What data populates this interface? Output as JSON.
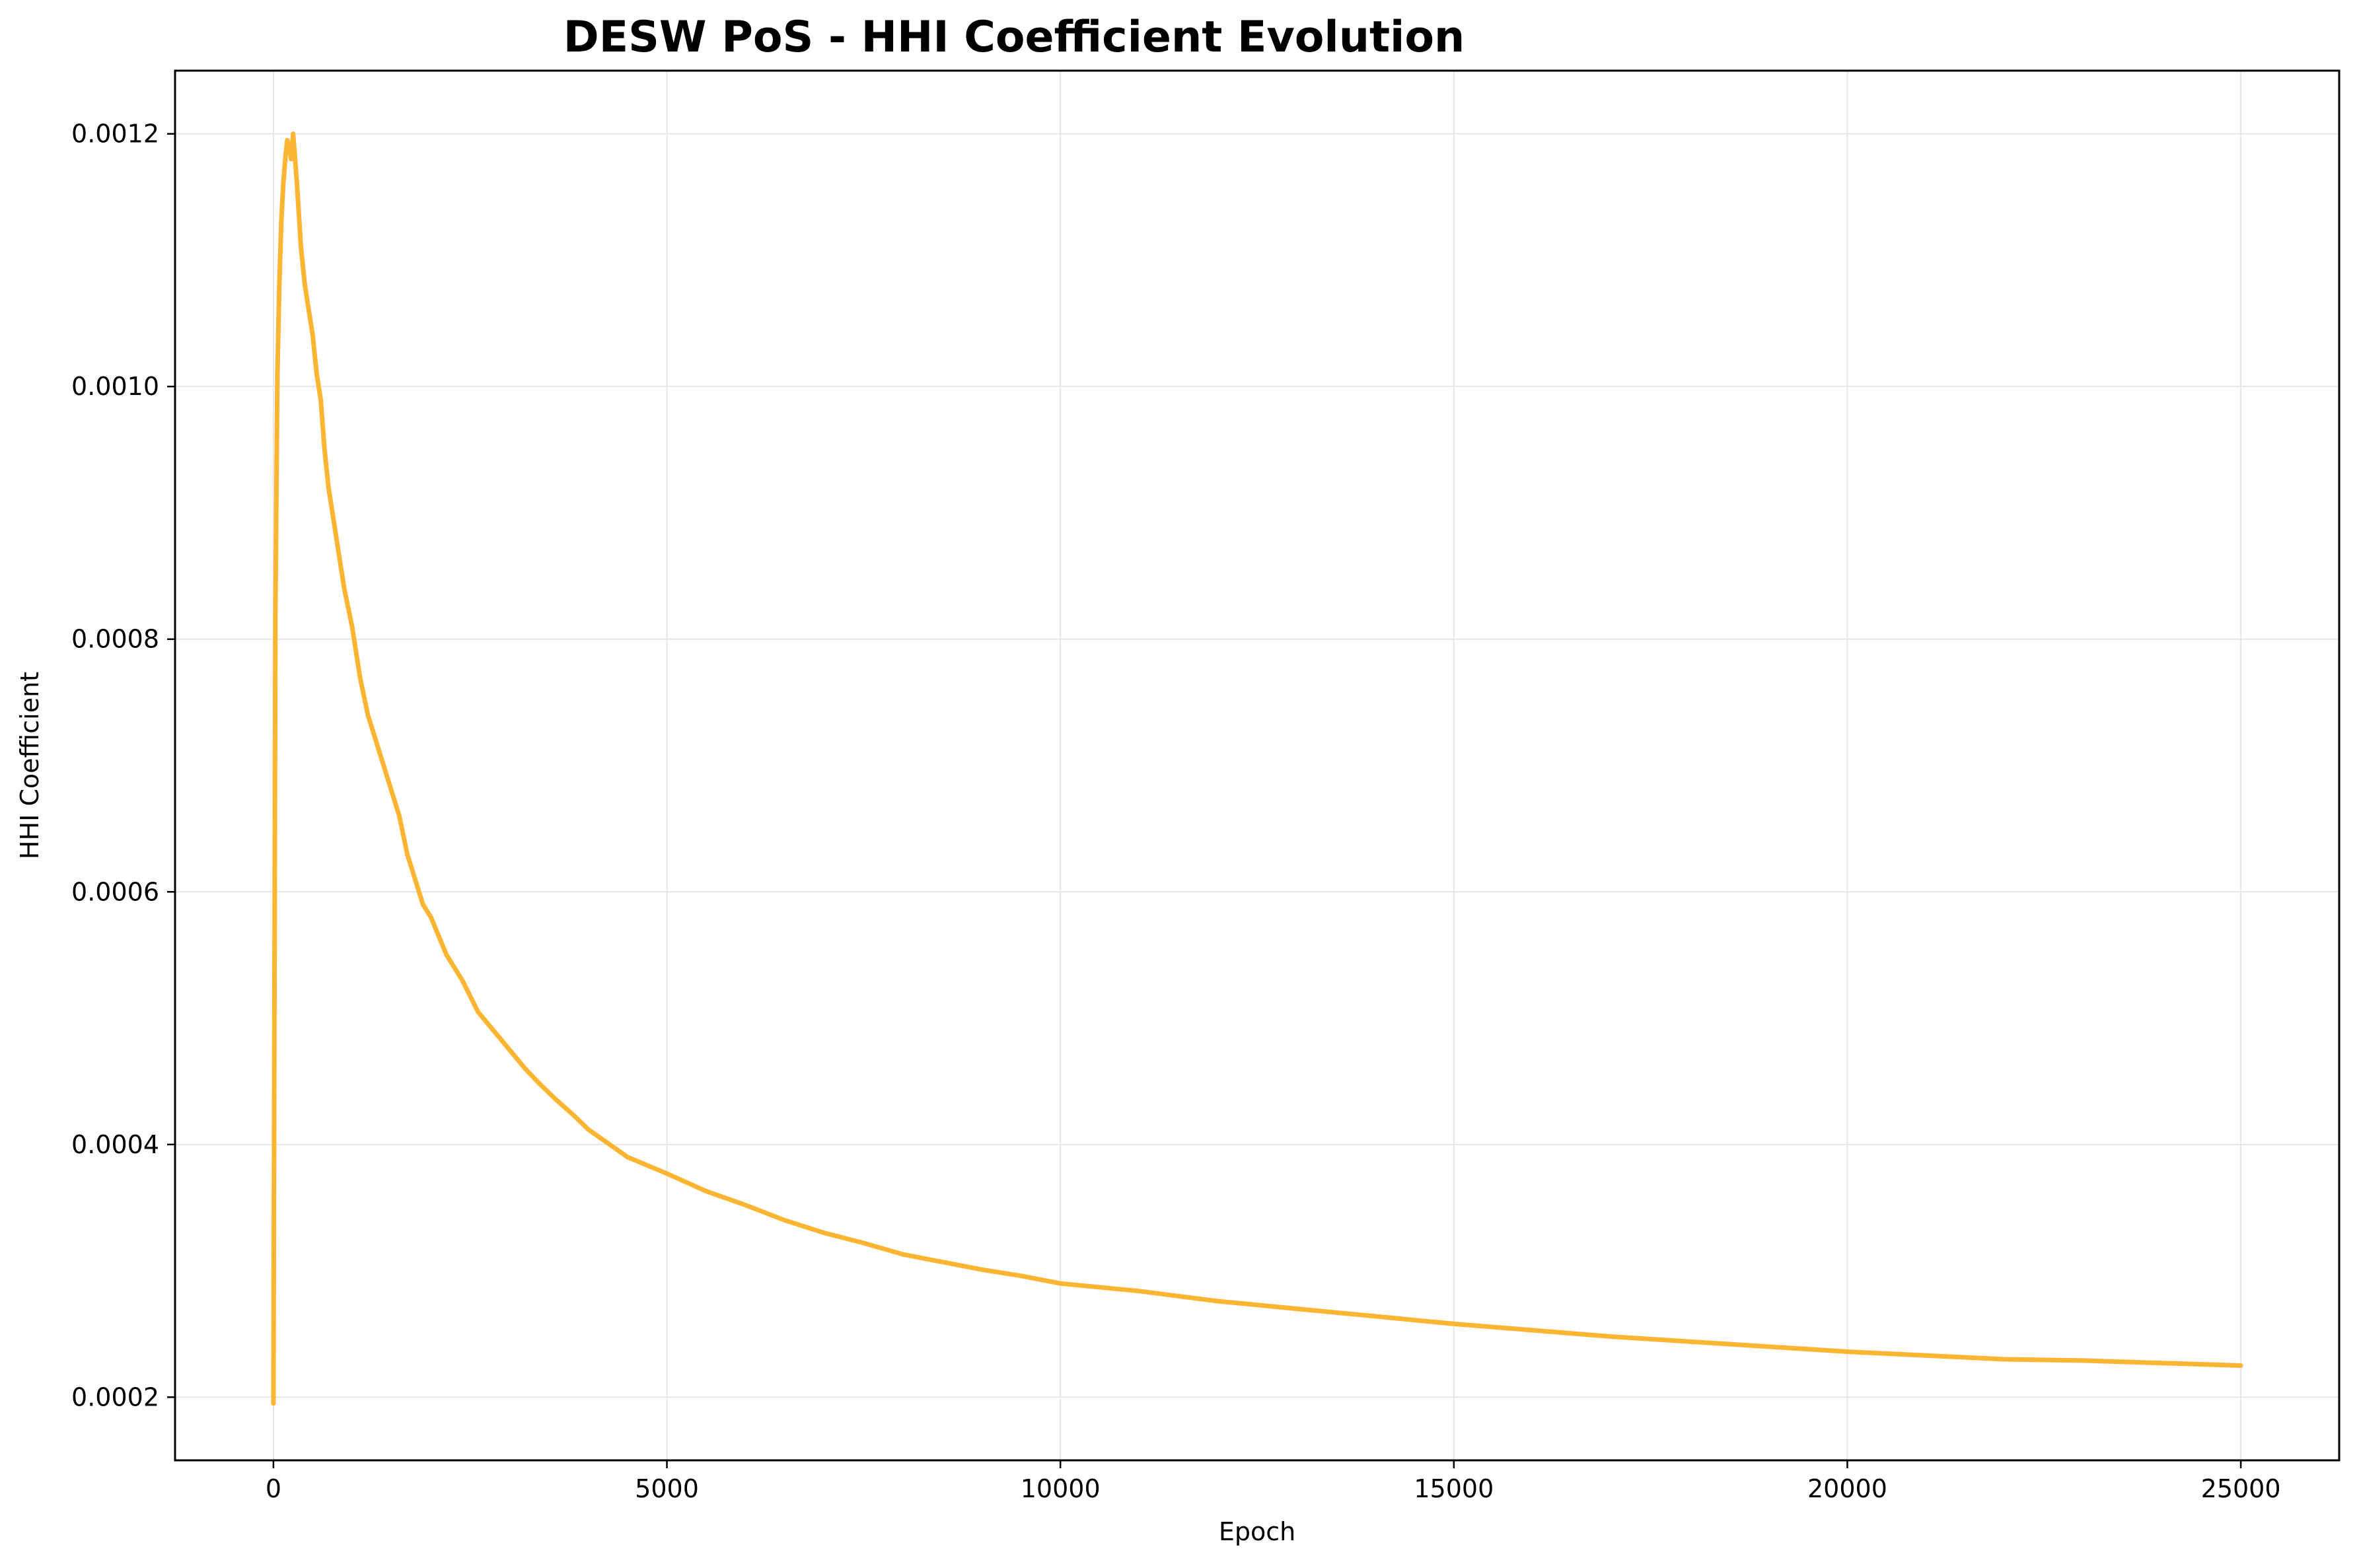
{
  "chart_data": {
    "type": "line",
    "title": "DESW PoS - HHI Coefficient Evolution",
    "xlabel": "Epoch",
    "ylabel": "HHI Coefficient",
    "xlim": [
      -1250,
      26250
    ],
    "ylim": [
      0.00015,
      0.00125
    ],
    "grid": true,
    "line_color": "#fbb532",
    "x_ticks": [
      {
        "value": 0,
        "label": "0"
      },
      {
        "value": 5000,
        "label": "5000"
      },
      {
        "value": 10000,
        "label": "10000"
      },
      {
        "value": 15000,
        "label": "15000"
      },
      {
        "value": 20000,
        "label": "20000"
      },
      {
        "value": 25000,
        "label": "25000"
      }
    ],
    "y_ticks": [
      {
        "value": 0.0002,
        "label": "0.0002"
      },
      {
        "value": 0.0004,
        "label": "0.0004"
      },
      {
        "value": 0.0006,
        "label": "0.0006"
      },
      {
        "value": 0.0008,
        "label": "0.0008"
      },
      {
        "value": 0.001,
        "label": "0.0010"
      },
      {
        "value": 0.0012,
        "label": "0.0012"
      }
    ],
    "series": [
      {
        "x": [
          0,
          25,
          50,
          75,
          100,
          125,
          150,
          175,
          200,
          225,
          250,
          275,
          300,
          350,
          400,
          450,
          500,
          550,
          600,
          650,
          700,
          800,
          900,
          1000,
          1100,
          1200,
          1300,
          1400,
          1500,
          1600,
          1700,
          1800,
          1900,
          2000,
          2200,
          2400,
          2600,
          2800,
          3000,
          3200,
          3400,
          3600,
          3800,
          4000,
          4500,
          5000,
          5500,
          6000,
          6500,
          7000,
          7500,
          8000,
          8500,
          9000,
          9500,
          10000,
          11000,
          12000,
          13000,
          14000,
          15000,
          16000,
          17000,
          18000,
          19000,
          20000,
          21000,
          22000,
          23000,
          24000,
          25000
        ],
        "y": [
          0.000195,
          0.00082,
          0.00101,
          0.00108,
          0.00113,
          0.00116,
          0.00118,
          0.001195,
          0.00119,
          0.00118,
          0.0012,
          0.00118,
          0.00116,
          0.00111,
          0.00108,
          0.00106,
          0.00104,
          0.00101,
          0.00099,
          0.00095,
          0.00092,
          0.00088,
          0.00084,
          0.00081,
          0.00077,
          0.00074,
          0.00072,
          0.0007,
          0.00068,
          0.00066,
          0.00063,
          0.00061,
          0.00059,
          0.00058,
          0.00055,
          0.00053,
          0.000505,
          0.00049,
          0.000475,
          0.00046,
          0.000447,
          0.000435,
          0.000424,
          0.000412,
          0.00039,
          0.000377,
          0.000363,
          0.000352,
          0.00034,
          0.00033,
          0.000322,
          0.000313,
          0.000307,
          0.000301,
          0.000296,
          0.00029,
          0.000284,
          0.000276,
          0.00027,
          0.000264,
          0.000258,
          0.000253,
          0.000248,
          0.000244,
          0.00024,
          0.000236,
          0.000233,
          0.00023,
          0.000229,
          0.000227,
          0.000225
        ]
      }
    ]
  }
}
